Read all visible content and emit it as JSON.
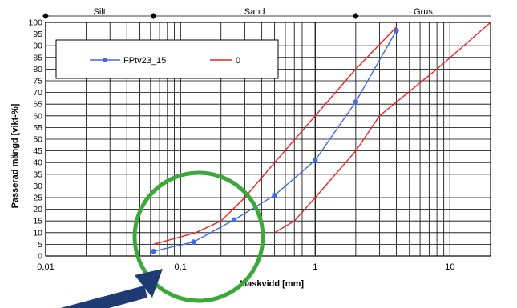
{
  "chart_data": {
    "type": "line",
    "x_scale": "log",
    "xlim": [
      0.01,
      20
    ],
    "ylim": [
      0,
      100
    ],
    "xlabel": "Maskvidd [mm]",
    "ylabel": "Passerad mängd [vikt-%]",
    "x_ticks": [
      0.01,
      0.1,
      1,
      10
    ],
    "x_tick_labels": [
      "0,01",
      "0,1",
      "1",
      "10"
    ],
    "y_ticks": [
      0,
      5,
      10,
      15,
      20,
      25,
      30,
      35,
      40,
      45,
      50,
      55,
      60,
      65,
      70,
      75,
      80,
      85,
      90,
      95,
      100
    ],
    "zones": [
      {
        "label": "Silt",
        "from": 0.002,
        "to": 0.063
      },
      {
        "label": "Sand",
        "from": 0.063,
        "to": 2
      },
      {
        "label": "Grus",
        "from": 2,
        "to": 63
      }
    ],
    "zone_markers": [
      0.01,
      0.063,
      2
    ],
    "legend_position": "top-left",
    "series": [
      {
        "name": "FPtv23_15",
        "color": "#4169e1",
        "marker": "circle",
        "x": [
          0.063,
          0.125,
          0.25,
          0.5,
          1,
          2,
          4
        ],
        "y": [
          2,
          6,
          15.5,
          26,
          41,
          66,
          96.5
        ]
      },
      {
        "name": "0",
        "color": "#ee2222",
        "marker": "none",
        "segments": [
          {
            "x": [
              0.063,
              0.13,
              0.2,
              0.3,
              0.5,
              1,
              2,
              4
            ],
            "y": [
              5,
              10,
              15,
              25,
              40,
              60,
              80,
              98
            ]
          },
          {
            "x": [
              0.5,
              0.7,
              1,
              2,
              3,
              8,
              20
            ],
            "y": [
              10,
              15,
              25,
              45,
              60,
              80,
              100
            ]
          }
        ]
      }
    ]
  },
  "overlays": {
    "circle_color": "#3aa83a",
    "arrow_color": "#1f3b73"
  }
}
